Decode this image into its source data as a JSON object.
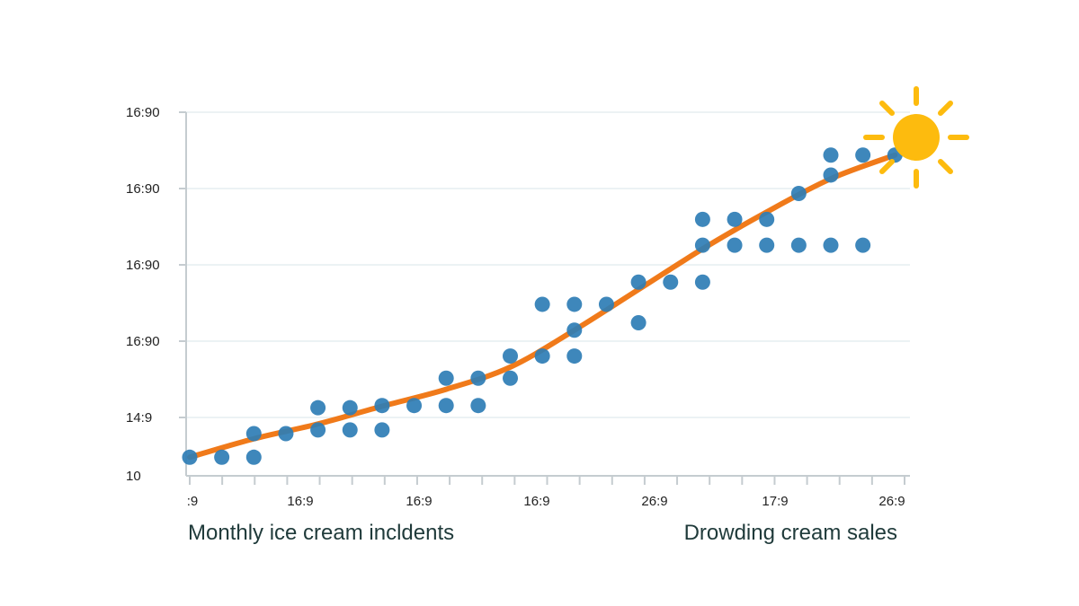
{
  "chart_data": {
    "type": "scatter",
    "title": "",
    "ytick_labels": [
      "10",
      "14:9",
      "16:90",
      "16:90",
      "16:90",
      "16:90"
    ],
    "xtick_labels": [
      ":9",
      "16:9",
      "16:9",
      "16:9",
      "26:9",
      "17:9",
      "26:9"
    ],
    "xlabel_left": "Monthly ice cream incldents",
    "xlabel_right": "Drowding cream sales",
    "xlim": [
      0,
      22.3
    ],
    "ylim": [
      0,
      4.8
    ],
    "grid": true,
    "series": [
      {
        "kind": "points",
        "values": [
          [
            0,
            0.13
          ],
          [
            1,
            0.13
          ],
          [
            2,
            0.13
          ],
          [
            2,
            0.45
          ],
          [
            3,
            0.45
          ],
          [
            4,
            0.5
          ],
          [
            4,
            0.8
          ],
          [
            5,
            0.5
          ],
          [
            5,
            0.8
          ],
          [
            6,
            0.5
          ],
          [
            6,
            0.83
          ],
          [
            7,
            0.83
          ],
          [
            8,
            0.83
          ],
          [
            8,
            1.2
          ],
          [
            9,
            0.83
          ],
          [
            9,
            1.2
          ],
          [
            10,
            1.2
          ],
          [
            10,
            1.5
          ],
          [
            11,
            1.5
          ],
          [
            11,
            2.2
          ],
          [
            12,
            1.5
          ],
          [
            12,
            1.85
          ],
          [
            12,
            2.2
          ],
          [
            13,
            2.2
          ],
          [
            14,
            1.95
          ],
          [
            14,
            2.5
          ],
          [
            15,
            2.5
          ],
          [
            16,
            2.5
          ],
          [
            16,
            3.0
          ],
          [
            16,
            3.35
          ],
          [
            17,
            3.0
          ],
          [
            17,
            3.35
          ],
          [
            18,
            3.0
          ],
          [
            18,
            3.35
          ],
          [
            19,
            3.0
          ],
          [
            19,
            3.7
          ],
          [
            20,
            3.0
          ],
          [
            20,
            3.95
          ],
          [
            20,
            4.22
          ],
          [
            21,
            3.0
          ],
          [
            21,
            4.22
          ],
          [
            22,
            4.22
          ]
        ]
      },
      {
        "kind": "trend",
        "values": [
          [
            0,
            0.13
          ],
          [
            2,
            0.38
          ],
          [
            4,
            0.58
          ],
          [
            6,
            0.82
          ],
          [
            8,
            1.05
          ],
          [
            10,
            1.35
          ],
          [
            12,
            1.85
          ],
          [
            14,
            2.4
          ],
          [
            16,
            2.95
          ],
          [
            18,
            3.45
          ],
          [
            20,
            3.9
          ],
          [
            22,
            4.22
          ]
        ]
      }
    ],
    "colors": {
      "points": "#2e7db5",
      "trend": "#f07a1a",
      "sun": "#fdbb0e",
      "grid": "#e6edf0",
      "axis": "#c5ccd0"
    },
    "decoration_icon": "sun-icon"
  }
}
